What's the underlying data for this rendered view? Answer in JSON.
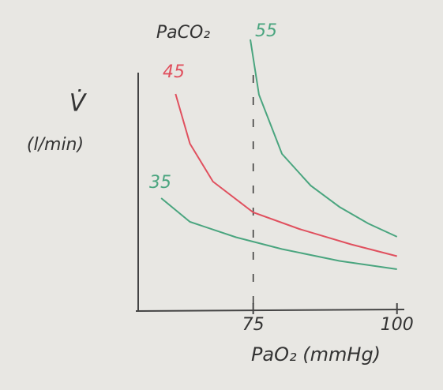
{
  "chart_data": {
    "type": "line",
    "y_label": "V̇",
    "y_unit": "(l/min)",
    "x_label": "PaO₂ (mmHg)",
    "legend_title": "PaCO₂",
    "xlim": [
      55,
      101
    ],
    "xticks": [
      75,
      100
    ],
    "ylim": [
      0,
      12
    ],
    "series": [
      {
        "name": "35",
        "color": "#4aa57f",
        "x": [
          59,
          64,
          72,
          80,
          90,
          100
        ],
        "values": [
          4.7,
          3.7,
          3.05,
          2.55,
          2.05,
          1.7
        ]
      },
      {
        "name": "45",
        "color": "#e0505e",
        "x": [
          61.5,
          64,
          68,
          75,
          83,
          92,
          100
        ],
        "values": [
          9.1,
          7.0,
          5.4,
          4.1,
          3.4,
          2.75,
          2.25
        ]
      },
      {
        "name": "55",
        "color": "#4aa57f",
        "x": [
          74.5,
          76,
          80,
          85,
          90,
          95,
          100
        ],
        "values": [
          11.4,
          9.07,
          6.57,
          5.23,
          4.33,
          3.63,
          3.07
        ]
      }
    ]
  }
}
